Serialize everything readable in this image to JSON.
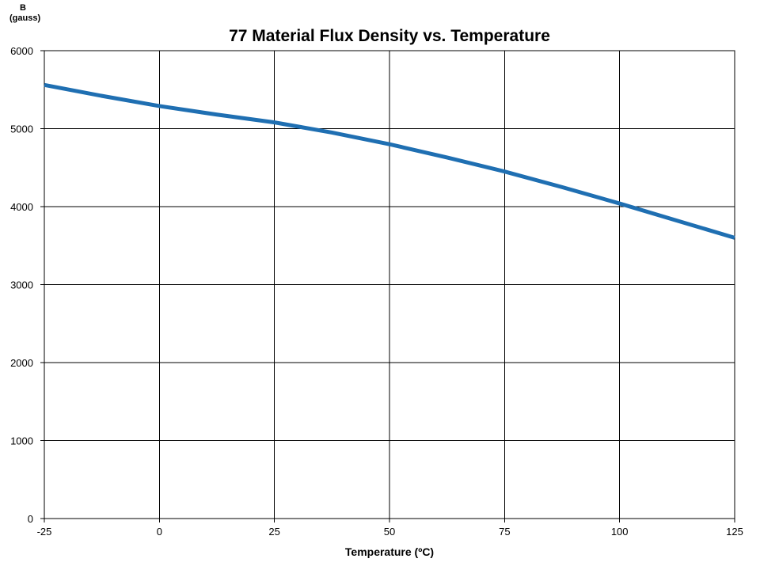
{
  "chart_data": {
    "type": "line",
    "title": "77 Material Flux Density vs. Temperature",
    "ylabel_line1": "B",
    "ylabel_line2": "(gauss)",
    "xlabel": "Temperature  (ºC)",
    "xlim": [
      -25,
      125
    ],
    "ylim": [
      0,
      6000
    ],
    "xticks": [
      "-25",
      "0",
      "25",
      "50",
      "75",
      "100",
      "125"
    ],
    "yticks": [
      "0",
      "1000",
      "2000",
      "3000",
      "4000",
      "5000",
      "6000"
    ],
    "grid": true,
    "legend": "none",
    "line_color": "#1F6FB2",
    "series": [
      {
        "x": [
          -25,
          -12.5,
          0,
          12.5,
          25,
          37.5,
          50,
          62.5,
          75,
          87.5,
          100,
          112.5,
          125
        ],
        "y": [
          5560,
          5420,
          5290,
          5180,
          5080,
          4950,
          4800,
          4630,
          4450,
          4250,
          4040,
          3820,
          3600
        ]
      }
    ]
  }
}
